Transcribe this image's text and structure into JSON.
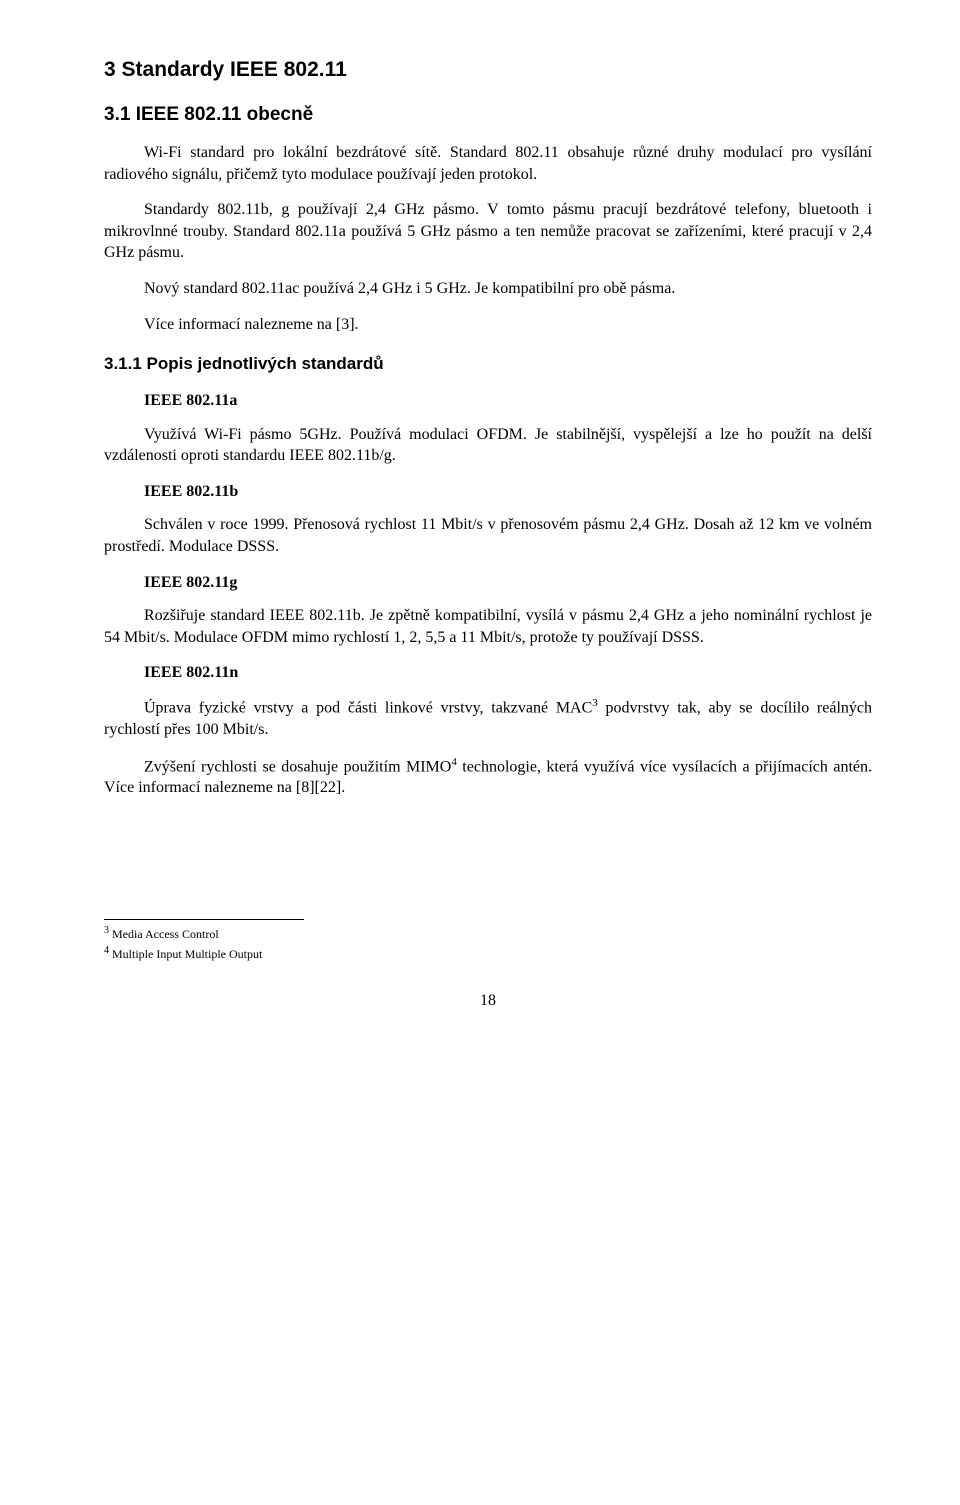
{
  "h1": "3  Standardy IEEE 802.11",
  "h2": "3.1  IEEE 802.11 obecně",
  "p1": "Wi-Fi standard pro lokální bezdrátové sítě. Standard 802.11 obsahuje různé druhy modulací pro vysílání radiového signálu, přičemž tyto modulace používají jeden protokol.",
  "p2": "Standardy 802.11b, g používají 2,4 GHz pásmo. V tomto pásmu pracují bezdrátové telefony, bluetooth i mikrovlnné trouby. Standard 802.11a používá 5 GHz pásmo a ten nemůže pracovat se zařízeními, které pracují v 2,4 GHz pásmu.",
  "p3": "Nový standard 802.11ac používá 2,4 GHz i 5 GHz. Je kompatibilní pro obě pásma.",
  "p4": "Více informací nalezneme na [3].",
  "h3": "3.1.1  Popis jednotlivých standardů",
  "s1_title": "IEEE 802.11a",
  "s1_body": "Využívá Wi-Fi pásmo 5GHz. Používá modulaci OFDM. Je stabilnější, vyspělejší a lze ho použít na delší vzdálenosti oproti standardu IEEE 802.11b/g.",
  "s2_title": "IEEE 802.11b",
  "s2_body": "Schválen v roce 1999. Přenosová rychlost 11 Mbit/s v přenosovém pásmu 2,4 GHz. Dosah až 12 km ve volném prostředí. Modulace DSSS.",
  "s3_title": "IEEE 802.11g",
  "s3_body": "Rozšiřuje standard IEEE 802.11b. Je zpětně kompatibilní, vysílá v pásmu 2,4 GHz a jeho nominální rychlost je 54 Mbit/s. Modulace OFDM mimo rychlostí 1, 2, 5,5 a 11 Mbit/s, protože ty používají DSSS.",
  "s4_title": "IEEE 802.11n",
  "s4_body_a": "Úprava fyzické vrstvy a pod části linkové vrstvy, takzvané MAC",
  "s4_body_b": " podvrstvy tak, aby se docílilo reálných rychlostí přes 100 Mbit/s.",
  "s4_body2_a": "Zvýšení rychlosti se dosahuje použitím MIMO",
  "s4_body2_b": " technologie, která využívá více vysílacích a přijímacích antén. Více informací nalezneme na [8][22].",
  "fn3_num": "3",
  "fn3_text": " Media Access Control",
  "fn4_num": "4",
  "fn4_text": " Multiple Input Multiple Output",
  "page_number": "18",
  "sup3": "3",
  "sup4": "4"
}
